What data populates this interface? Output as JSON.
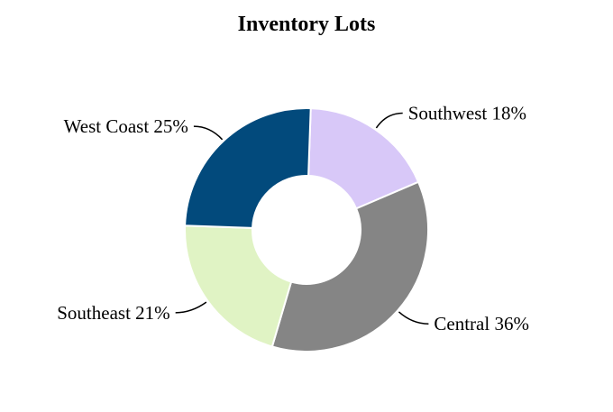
{
  "chart_data": {
    "type": "pie",
    "variant": "donut",
    "title": "Inventory Lots",
    "categories": [
      "Southwest",
      "Central",
      "Southeast",
      "West Coast"
    ],
    "values": [
      18,
      36,
      21,
      25
    ],
    "labels": [
      "Southwest 18%",
      "Central 36%",
      "Southeast 21%",
      "West Coast 25%"
    ],
    "colors": [
      "#d8c8f8",
      "#858585",
      "#e0f3c4",
      "#024a7c"
    ],
    "legend": "none"
  }
}
